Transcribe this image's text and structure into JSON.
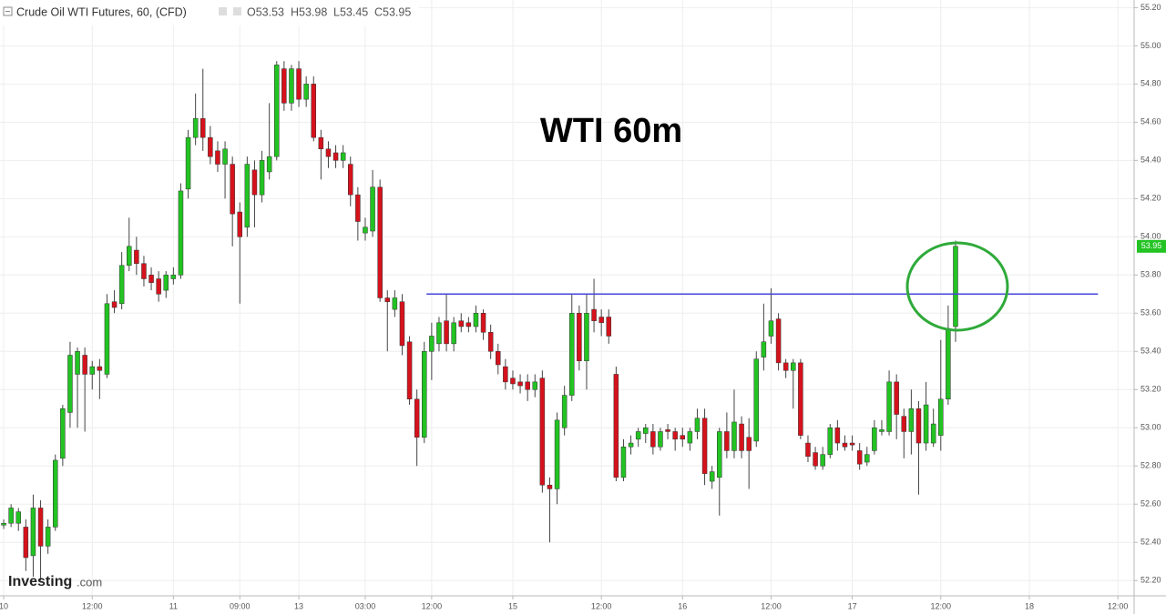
{
  "chart_data": {
    "type": "candlestick",
    "header": {
      "name": "Crude Oil WTI Futures, 60, (CFD)",
      "ohlc": [
        "O53.53",
        "H53.98",
        "L53.45",
        "C53.95"
      ]
    },
    "title": "WTI 60m",
    "watermark": [
      "Investing",
      ".com"
    ],
    "up_color": "#22c322",
    "down_color": "#d5121c",
    "grid": true,
    "xlim": [
      -0.5,
      153.2
    ],
    "ylim": [
      52.12,
      55.24
    ],
    "yticks": [
      {
        "value": 52.2,
        "label": "52.20"
      },
      {
        "value": 52.4,
        "label": "52.40"
      },
      {
        "value": 52.6,
        "label": "52.60"
      },
      {
        "value": 52.8,
        "label": "52.80"
      },
      {
        "value": 53,
        "label": "53.00"
      },
      {
        "value": 53.2,
        "label": "53.20"
      },
      {
        "value": 53.4,
        "label": "53.40"
      },
      {
        "value": 53.6,
        "label": "53.60"
      },
      {
        "value": 53.8,
        "label": "53.80"
      },
      {
        "value": 54,
        "label": "54.00"
      },
      {
        "value": 54.2,
        "label": "54.20"
      },
      {
        "value": 54.4,
        "label": "54.40"
      },
      {
        "value": 54.6,
        "label": "54.60"
      },
      {
        "value": 54.8,
        "label": "54.80"
      },
      {
        "value": 55,
        "label": "55.00"
      },
      {
        "value": 55.2,
        "label": "55.20"
      }
    ],
    "xticks": [
      {
        "value": 0,
        "label": "10"
      },
      {
        "value": 12,
        "label": "12:00"
      },
      {
        "value": 23,
        "label": "11"
      },
      {
        "value": 32,
        "label": "09:00"
      },
      {
        "value": 40,
        "label": "13"
      },
      {
        "value": 49,
        "label": "03:00"
      },
      {
        "value": 58,
        "label": "12:00"
      },
      {
        "value": 69,
        "label": "15"
      },
      {
        "value": 81,
        "label": "12:00"
      },
      {
        "value": 92,
        "label": "16"
      },
      {
        "value": 104,
        "label": "12:00"
      },
      {
        "value": 115,
        "label": "17"
      },
      {
        "value": 127,
        "label": "12:00"
      },
      {
        "value": 139,
        "label": "18"
      },
      {
        "value": 151,
        "label": "12:00"
      }
    ],
    "hline": {
      "y": 53.7,
      "x": [
        57.3,
        148.3
      ],
      "color": "#4646d8"
    },
    "last_price": 53.95,
    "series": [
      {
        "open": [
          52.49,
          52.5,
          52.5,
          52.48,
          52.33,
          52.58,
          52.38,
          52.48,
          52.84,
          53.08,
          53.28,
          53.38,
          53.28,
          53.32,
          53.28,
          53.66,
          53.65,
          53.85,
          53.93,
          53.86,
          53.8,
          53.78,
          53.72,
          53.78,
          53.8,
          54.25,
          54.52,
          54.62,
          54.52,
          54.45,
          54.38,
          54.38,
          54.13,
          54.05,
          54.35,
          54.22,
          54.34,
          54.42,
          54.88,
          54.7,
          54.88,
          54.72,
          54.8,
          54.52,
          54.46,
          54.44,
          54.4,
          54.38,
          54.22,
          54.02,
          54.03,
          54.26,
          53.68,
          53.62,
          53.66,
          53.45,
          53.15,
          52.95,
          53.4,
          53.44,
          53.56,
          53.44,
          53.56,
          53.55,
          53.53,
          53.6,
          53.5,
          53.4,
          53.32,
          53.26,
          53.24,
          53.24,
          53.2,
          53.26,
          52.7,
          52.68,
          53.0,
          53.17,
          53.6,
          53.35,
          53.62,
          53.58,
          53.58,
          53.28,
          52.74,
          52.9,
          52.94,
          52.97,
          52.98,
          52.9,
          52.99,
          52.98,
          52.96,
          52.92,
          52.98,
          53.05,
          52.72,
          52.74,
          52.98,
          52.88,
          53.02,
          52.95,
          52.93,
          53.37,
          53.48,
          53.57,
          53.34,
          53.3,
          53.34,
          52.92,
          52.87,
          52.8,
          52.86,
          53.0,
          52.92,
          52.92,
          52.88,
          52.82,
          52.88,
          52.98,
          52.98,
          53.24,
          53.06,
          52.98,
          53.1,
          52.92,
          52.92,
          52.96,
          53.15,
          53.53
        ],
        "high": [
          52.52,
          52.6,
          52.58,
          52.52,
          52.65,
          52.62,
          52.52,
          52.86,
          53.12,
          53.45,
          53.42,
          53.42,
          53.35,
          53.36,
          53.7,
          53.72,
          53.92,
          54.1,
          54.0,
          53.9,
          53.84,
          53.82,
          53.82,
          53.84,
          54.28,
          54.56,
          54.75,
          54.88,
          54.58,
          54.5,
          54.5,
          54.42,
          54.18,
          54.42,
          54.4,
          54.45,
          54.7,
          54.92,
          54.92,
          54.9,
          54.92,
          54.84,
          54.84,
          54.56,
          54.5,
          54.48,
          54.48,
          54.42,
          54.26,
          54.1,
          54.35,
          54.3,
          53.72,
          53.72,
          53.7,
          53.48,
          53.2,
          53.45,
          53.55,
          53.58,
          53.7,
          53.58,
          53.6,
          53.58,
          53.64,
          53.62,
          53.54,
          53.44,
          53.36,
          53.3,
          53.28,
          53.28,
          53.28,
          53.3,
          52.74,
          53.08,
          53.22,
          53.7,
          53.64,
          53.7,
          53.78,
          53.62,
          53.62,
          53.32,
          52.94,
          52.96,
          53.0,
          53.02,
          53.02,
          53.0,
          53.02,
          53.0,
          53.0,
          53.0,
          53.1,
          53.1,
          52.8,
          53.0,
          53.08,
          53.2,
          53.06,
          53.05,
          53.4,
          53.65,
          53.73,
          53.6,
          53.36,
          53.36,
          53.36,
          52.96,
          52.9,
          52.9,
          53.02,
          53.04,
          52.96,
          52.96,
          52.92,
          52.9,
          53.04,
          53.04,
          53.3,
          53.28,
          53.1,
          53.2,
          53.14,
          53.24,
          53.1,
          53.46,
          53.64,
          53.98
        ],
        "low": [
          52.47,
          52.48,
          52.46,
          52.25,
          52.22,
          52.2,
          52.34,
          52.46,
          52.8,
          53.0,
          53.0,
          52.98,
          53.2,
          53.15,
          53.26,
          53.6,
          53.62,
          53.82,
          53.8,
          53.74,
          53.72,
          53.66,
          53.68,
          53.75,
          53.78,
          54.2,
          54.48,
          54.45,
          54.38,
          54.34,
          54.2,
          53.95,
          53.65,
          54.0,
          54.05,
          54.18,
          54.3,
          54.4,
          54.66,
          54.66,
          54.68,
          54.68,
          54.5,
          54.3,
          54.36,
          54.36,
          54.36,
          54.16,
          53.98,
          53.98,
          54.0,
          53.66,
          53.4,
          53.58,
          53.38,
          53.12,
          52.8,
          52.92,
          53.25,
          53.4,
          53.4,
          53.4,
          53.5,
          53.5,
          53.5,
          53.46,
          53.36,
          53.28,
          53.2,
          53.2,
          53.18,
          53.14,
          53.16,
          52.66,
          52.4,
          52.6,
          52.96,
          53.14,
          53.3,
          53.2,
          53.5,
          53.48,
          53.44,
          52.72,
          52.72,
          52.86,
          52.9,
          52.92,
          52.86,
          52.88,
          52.94,
          52.88,
          52.9,
          52.88,
          52.94,
          52.7,
          52.68,
          52.54,
          52.84,
          52.84,
          52.84,
          52.68,
          52.9,
          53.3,
          53.44,
          53.3,
          53.26,
          53.1,
          52.94,
          52.82,
          52.78,
          52.78,
          52.84,
          52.88,
          52.88,
          52.88,
          52.78,
          52.8,
          52.86,
          52.96,
          52.96,
          52.94,
          52.84,
          52.86,
          52.65,
          52.88,
          52.9,
          52.88,
          53.12,
          53.45
        ],
        "close": [
          52.5,
          52.58,
          52.56,
          52.32,
          52.58,
          52.38,
          52.48,
          52.83,
          53.1,
          53.38,
          53.4,
          53.28,
          53.32,
          53.3,
          53.65,
          53.63,
          53.85,
          53.95,
          53.86,
          53.78,
          53.76,
          53.7,
          53.8,
          53.8,
          54.24,
          54.52,
          54.62,
          54.52,
          54.42,
          54.38,
          54.46,
          54.12,
          54.0,
          54.38,
          54.22,
          54.4,
          54.42,
          54.9,
          54.7,
          54.88,
          54.72,
          54.8,
          54.52,
          54.46,
          54.42,
          54.4,
          54.44,
          54.22,
          54.08,
          54.05,
          54.26,
          53.68,
          53.66,
          53.68,
          53.43,
          53.15,
          52.95,
          53.4,
          53.48,
          53.55,
          53.44,
          53.55,
          53.53,
          53.53,
          53.6,
          53.5,
          53.4,
          53.33,
          53.24,
          53.23,
          53.22,
          53.2,
          53.24,
          52.7,
          52.68,
          53.04,
          53.17,
          53.6,
          53.35,
          53.6,
          53.56,
          53.55,
          53.48,
          52.74,
          52.9,
          52.92,
          52.98,
          53.0,
          52.9,
          52.98,
          52.98,
          52.94,
          52.94,
          52.98,
          53.05,
          52.76,
          52.77,
          52.98,
          52.88,
          53.03,
          52.88,
          52.88,
          53.36,
          53.45,
          53.56,
          53.34,
          53.3,
          53.34,
          52.96,
          52.85,
          52.8,
          52.86,
          53.0,
          52.92,
          52.9,
          52.91,
          52.81,
          52.86,
          53.0,
          52.99,
          53.24,
          53.07,
          52.98,
          53.1,
          52.92,
          53.12,
          53.02,
          53.15,
          53.52,
          53.95
        ]
      }
    ]
  }
}
